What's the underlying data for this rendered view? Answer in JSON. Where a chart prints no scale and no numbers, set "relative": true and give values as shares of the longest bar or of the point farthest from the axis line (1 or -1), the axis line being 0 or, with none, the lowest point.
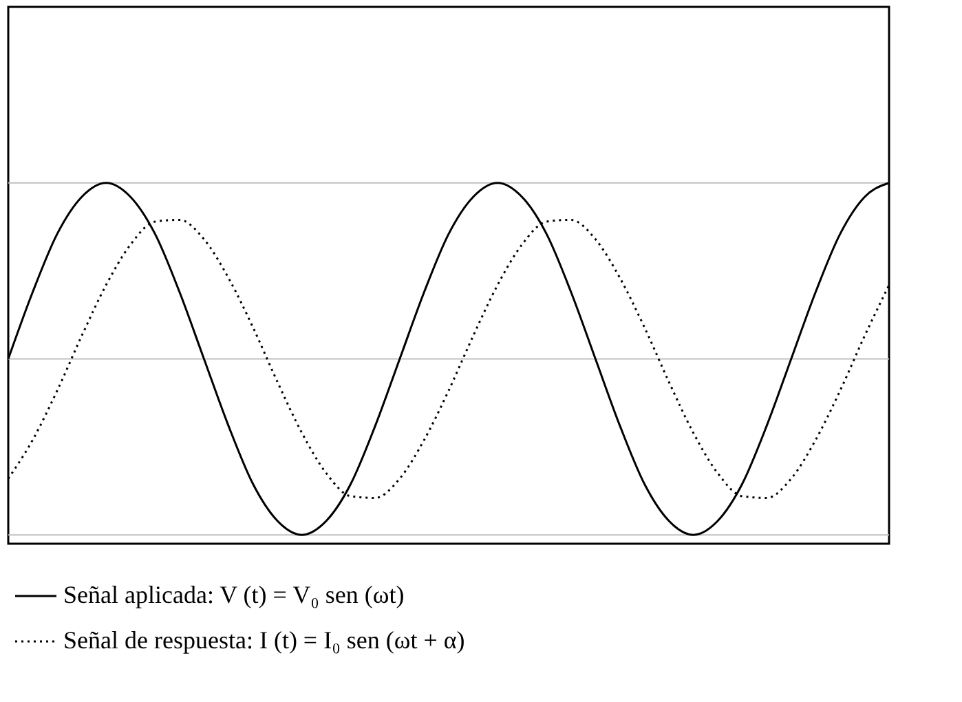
{
  "chart_data": {
    "type": "line",
    "relative": true,
    "categories": [
      null,
      null,
      null,
      null,
      null,
      null,
      null,
      null,
      null,
      null,
      null,
      null,
      null,
      null,
      null,
      null,
      null,
      null,
      null,
      null,
      null,
      null,
      null,
      null,
      null,
      null,
      null,
      null,
      null,
      null,
      null,
      null,
      null,
      null,
      null,
      null,
      null
    ],
    "series": [
      {
        "name": "Señal aplicada: V (t) = V₀ sen (ωt)",
        "color": "#000000",
        "line_style": "solid",
        "values": [
          0,
          0.38,
          0.71,
          0.92,
          1,
          0.92,
          0.71,
          0.38,
          0,
          -0.38,
          -0.71,
          -0.92,
          -1,
          -0.92,
          -0.71,
          -0.38,
          0,
          0.38,
          0.71,
          0.92,
          1,
          0.92,
          0.71,
          0.38,
          0,
          -0.38,
          -0.71,
          -0.92,
          -1,
          -0.92,
          -0.71,
          -0.38,
          0,
          0.38,
          0.71,
          0.92,
          1
        ]
      },
      {
        "name": "Señal de respuesta: I (t) = I₀ sen (ωt + α)",
        "color": "#000000",
        "line_style": "dotted",
        "values": [
          -0.68,
          -0.46,
          -0.18,
          0.13,
          0.42,
          0.65,
          0.78,
          0.79,
          0.68,
          0.46,
          0.18,
          -0.13,
          -0.42,
          -0.65,
          -0.78,
          -0.79,
          -0.68,
          -0.46,
          -0.18,
          0.13,
          0.42,
          0.65,
          0.78,
          0.79,
          0.68,
          0.46,
          0.18,
          -0.13,
          -0.42,
          -0.65,
          -0.78,
          -0.79,
          -0.68,
          -0.46,
          -0.18,
          0.13,
          0.42
        ]
      }
    ],
    "ref_lines": [
      {
        "axis": "y",
        "value": 1,
        "color": "#c0c0c0"
      },
      {
        "axis": "y",
        "value": 0,
        "color": "#c0c0c0"
      },
      {
        "axis": "y",
        "value": -1,
        "color": "#c0c0c0"
      }
    ],
    "legend": "bottom",
    "marker": "none"
  }
}
